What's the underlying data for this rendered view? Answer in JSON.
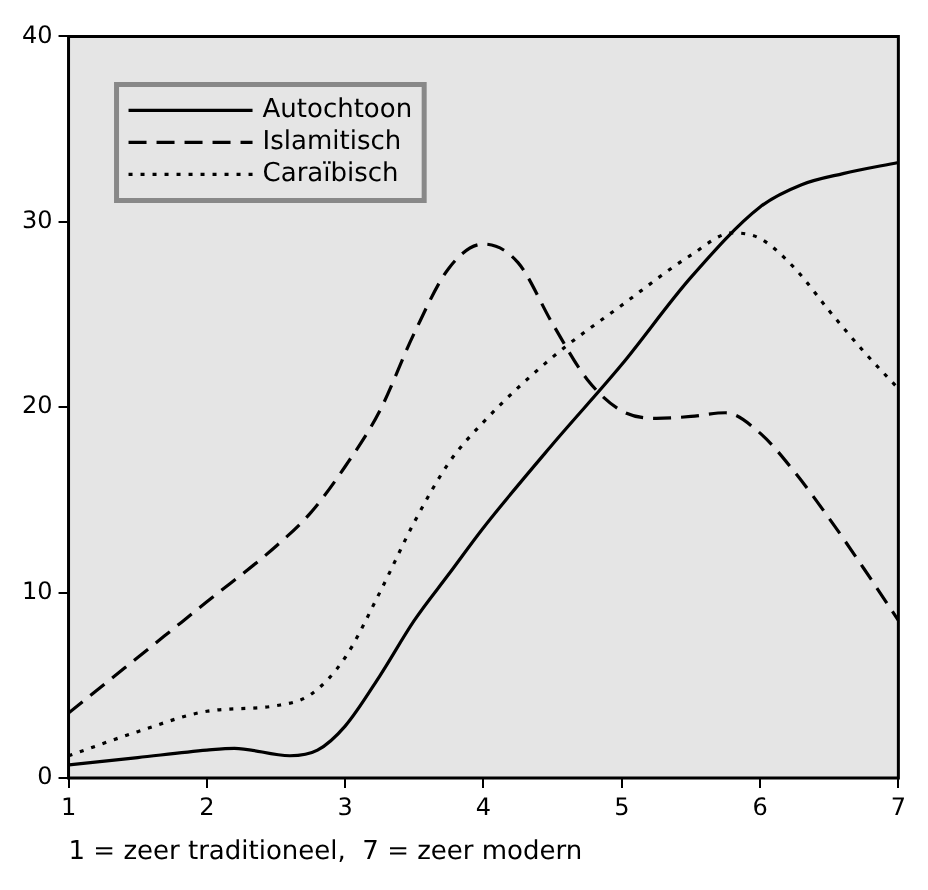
{
  "chart_data": {
    "type": "line",
    "xlabel": "1 = zeer traditioneel,  7 = zeer modern",
    "xlim": [
      1,
      7
    ],
    "xticks": [
      1,
      2,
      3,
      4,
      5,
      6,
      7
    ],
    "ylim": [
      0,
      40
    ],
    "yticks": [
      0,
      10,
      20,
      30,
      40
    ],
    "legend": "top left",
    "marker": "none",
    "series": [
      {
        "name": "Autochtoon",
        "color": "#000000",
        "line_style": "solid",
        "x": [
          1,
          1.5,
          2,
          2.2,
          2.6,
          2.8,
          3,
          3.25,
          3.5,
          3.75,
          4,
          4.5,
          5,
          5.5,
          6,
          6.3,
          6.6,
          7
        ],
        "values": [
          0.7,
          1.1,
          1.5,
          1.6,
          1.2,
          1.5,
          2.8,
          5.5,
          8.5,
          11,
          13.5,
          18,
          22.3,
          27,
          30.8,
          32,
          32.6,
          33.2
        ]
      },
      {
        "name": "Islamitisch",
        "color": "#000000",
        "line_style": "dashed",
        "x": [
          1,
          1.5,
          2,
          2.5,
          2.75,
          3,
          3.25,
          3.5,
          3.75,
          4,
          4.25,
          4.5,
          4.75,
          5,
          5.25,
          5.5,
          5.75,
          6,
          6.25,
          6.5,
          6.75,
          7
        ],
        "values": [
          3.5,
          6.5,
          9.5,
          12.5,
          14.3,
          16.8,
          19.8,
          24,
          27.5,
          28.8,
          27.8,
          24.5,
          21.5,
          19.8,
          19.4,
          19.5,
          19.7,
          18.6,
          16.5,
          14,
          11.3,
          8.5
        ]
      },
      {
        "name": "Caraïbisch",
        "color": "#000000",
        "line_style": "dotted",
        "x": [
          1,
          1.5,
          2,
          2.5,
          2.75,
          3,
          3.25,
          3.5,
          3.75,
          4,
          4.5,
          5,
          5.5,
          5.8,
          6,
          6.25,
          6.5,
          6.75,
          7
        ],
        "values": [
          1.2,
          2.5,
          3.6,
          3.9,
          4.5,
          6.5,
          10,
          13.8,
          17,
          19.2,
          22.7,
          25.5,
          28.2,
          29.4,
          29.1,
          27.5,
          25.2,
          23,
          21
        ]
      }
    ]
  }
}
